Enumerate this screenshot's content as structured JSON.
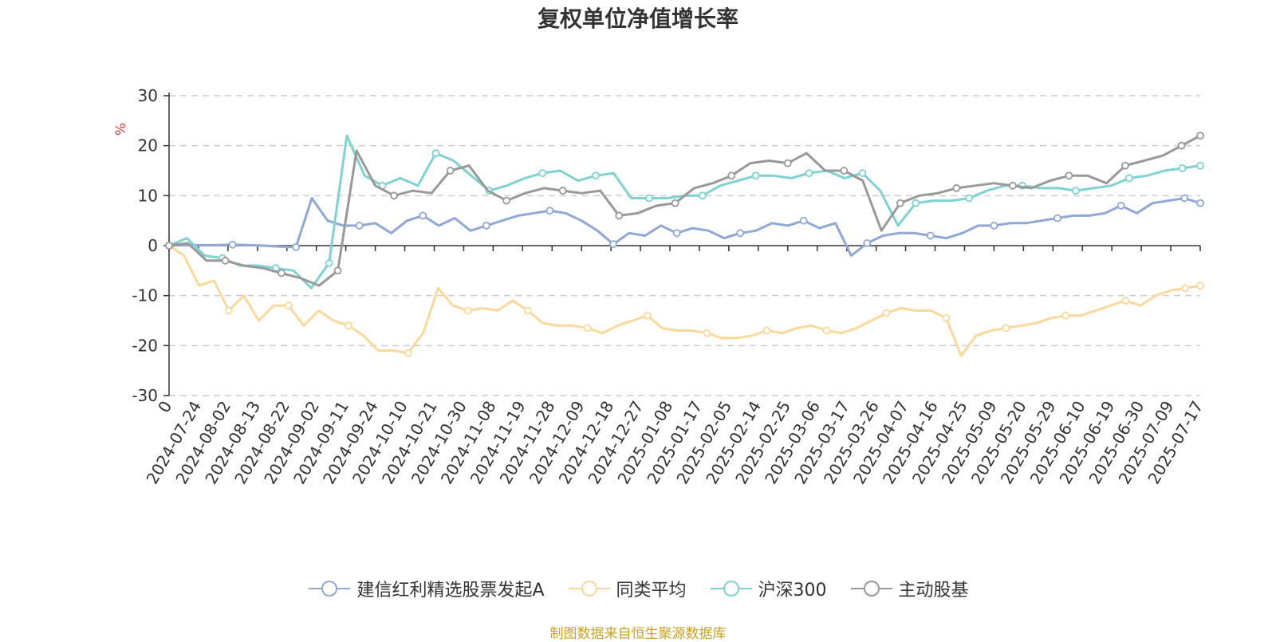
{
  "chart_data": {
    "type": "line",
    "title": "复权单位净值增长率",
    "ylabel": "%",
    "xlabel": "",
    "ylim": [
      -30,
      30
    ],
    "yticks": [
      30,
      20,
      10,
      0,
      -10,
      -20,
      -30
    ],
    "x_tick_labels": [
      "0",
      "2024-07-24",
      "2024-08-02",
      "2024-08-13",
      "2024-08-22",
      "2024-09-02",
      "2024-09-11",
      "2024-09-24",
      "2024-10-10",
      "2024-10-21",
      "2024-10-30",
      "2024-11-08",
      "2024-11-19",
      "2024-11-28",
      "2024-12-09",
      "2024-12-18",
      "2024-12-27",
      "2025-01-08",
      "2025-01-17",
      "2025-02-05",
      "2025-02-14",
      "2025-02-25",
      "2025-03-06",
      "2025-03-17",
      "2025-03-26",
      "2025-04-07",
      "2025-04-16",
      "2025-04-25",
      "2025-05-09",
      "2025-05-20",
      "2025-05-29",
      "2025-06-10",
      "2025-06-19",
      "2025-06-30",
      "2025-07-09",
      "2025-07-17"
    ],
    "grid": true,
    "legend_position": "bottom",
    "series": [
      {
        "name": "建信红利精选股票发起A",
        "color": "#8fa8d8",
        "values": [
          0,
          0.1,
          0.1,
          0.1,
          0.2,
          0.1,
          0,
          -0.2,
          -0.3,
          9.5,
          5,
          4,
          4,
          4.5,
          2.5,
          5,
          6,
          4,
          5.5,
          3,
          4,
          5,
          6,
          6.5,
          7,
          6.5,
          5,
          3,
          0.3,
          2.5,
          2,
          4,
          2.5,
          3.5,
          3,
          1.5,
          2.5,
          3,
          4.5,
          4,
          5,
          3.5,
          4.5,
          -2,
          0.5,
          2,
          2.5,
          2.5,
          2,
          1.5,
          2.5,
          4,
          4,
          4.5,
          4.5,
          5,
          5.5,
          6,
          6,
          6.5,
          8,
          6.5,
          8.5,
          9,
          9.5,
          8.5
        ]
      },
      {
        "name": "同类平均",
        "color": "#fcd89a",
        "values": [
          0,
          -2,
          -8,
          -7,
          -13,
          -10,
          -15,
          -12,
          -12,
          -16,
          -13,
          -15,
          -16,
          -18,
          -21,
          -21,
          -21.5,
          -17.5,
          -8.5,
          -12,
          -13,
          -12.5,
          -13,
          -11,
          -13,
          -15.5,
          -16,
          -16,
          -16.5,
          -17.5,
          -16,
          -15,
          -14,
          -16.5,
          -17,
          -17,
          -17.5,
          -18.5,
          -18.5,
          -18,
          -17,
          -17.5,
          -16.5,
          -16,
          -17,
          -17.5,
          -16.5,
          -15,
          -13.5,
          -12.5,
          -13,
          -13,
          -14.5,
          -22,
          -18,
          -17,
          -16.5,
          -16,
          -15.5,
          -14.5,
          -14,
          -14,
          -13,
          -12,
          -11,
          -12,
          -10,
          -9,
          -8.5,
          -8
        ]
      },
      {
        "name": "沪深300",
        "color": "#7fd2d2",
        "values": [
          0,
          1.5,
          -2,
          -2.5,
          -4,
          -4,
          -4.5,
          -5,
          -8.5,
          -3.5,
          22,
          14,
          12,
          13.5,
          12,
          18.5,
          17,
          14,
          11,
          12,
          13.5,
          14.5,
          15,
          13,
          14,
          14.5,
          9.5,
          9.5,
          9.5,
          10,
          10,
          12,
          13,
          14,
          14,
          13.5,
          14.5,
          15,
          13.5,
          14.5,
          11,
          4,
          8.5,
          9,
          9,
          9.5,
          11,
          12,
          12,
          11.5,
          11.5,
          11,
          11.5,
          12,
          13.5,
          14,
          15,
          15.5,
          16
        ]
      },
      {
        "name": "主动股基",
        "color": "#999999",
        "values": [
          0,
          0.5,
          -3,
          -3,
          -4,
          -4.5,
          -5.5,
          -6.5,
          -8,
          -5,
          19,
          12,
          10,
          11,
          10.5,
          15,
          16,
          11,
          9,
          10.5,
          11.5,
          11,
          10.5,
          11,
          6,
          6.5,
          8,
          8.5,
          11.5,
          12.5,
          14,
          16.5,
          17,
          16.5,
          18.5,
          15,
          15,
          13,
          3,
          8.5,
          10,
          10.5,
          11.5,
          12,
          12.5,
          12,
          11.5,
          13,
          14,
          14,
          12.5,
          16,
          17,
          18,
          20,
          22
        ]
      }
    ]
  },
  "source_note": "制图数据来自恒生聚源数据库"
}
